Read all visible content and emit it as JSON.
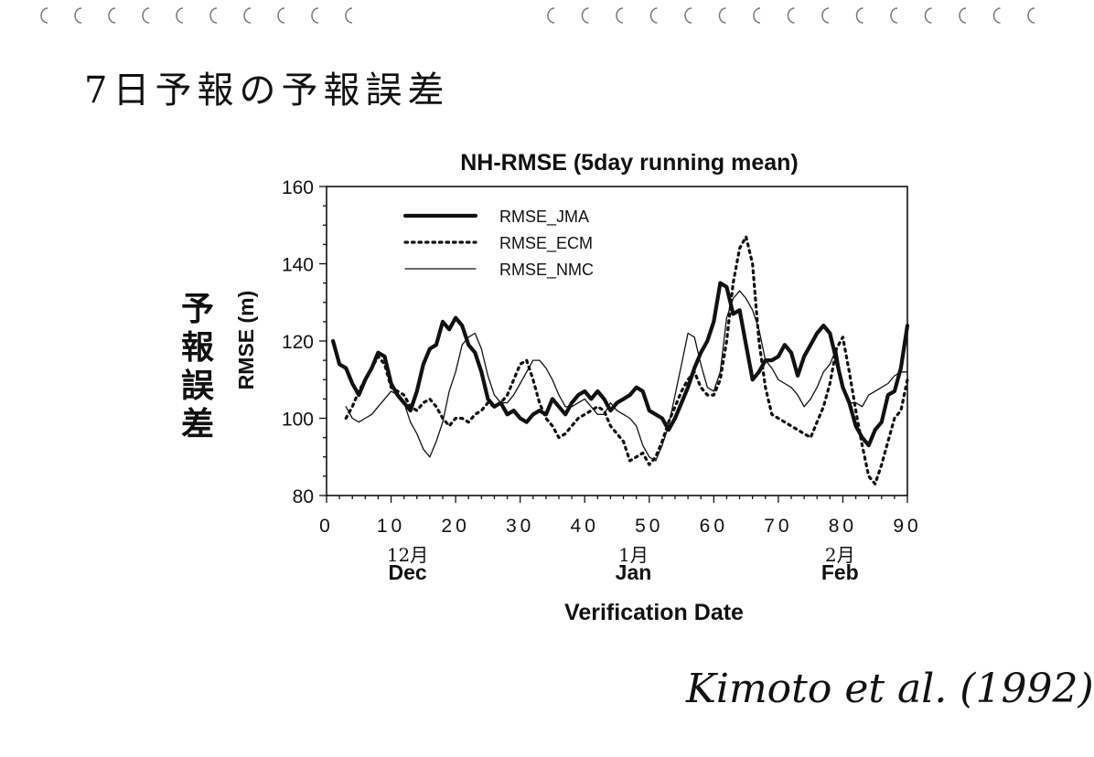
{
  "page": {
    "heading": "7日予報の予報誤差",
    "side_label": "予報誤差",
    "credit": "Kimoto et al. (1992)"
  },
  "chart_data": {
    "type": "line",
    "title": "NH-RMSE (5day running mean)",
    "xlabel": "Verification Date",
    "ylabel": "RMSE (m)",
    "xlim": [
      0,
      90
    ],
    "ylim": [
      80,
      160
    ],
    "xticks": [
      0,
      10,
      20,
      30,
      40,
      50,
      60,
      70,
      80,
      90
    ],
    "yticks": [
      80,
      100,
      120,
      140,
      160
    ],
    "grid": false,
    "legend_position": "top-left",
    "month_labels": [
      {
        "x": 10,
        "hand": "12月",
        "name": "Dec"
      },
      {
        "x": 45,
        "hand": "1月",
        "name": "Jan"
      },
      {
        "x": 77,
        "hand": "2月",
        "name": "Feb"
      }
    ],
    "series": [
      {
        "name": "RMSE_JMA",
        "style": "thick",
        "color": "#111111",
        "x": [
          1,
          2,
          3,
          4,
          5,
          6,
          7,
          8,
          9,
          10,
          11,
          12,
          13,
          14,
          15,
          16,
          17,
          18,
          19,
          20,
          21,
          22,
          23,
          24,
          25,
          26,
          27,
          28,
          29,
          30,
          31,
          32,
          33,
          34,
          35,
          36,
          37,
          38,
          39,
          40,
          41,
          42,
          43,
          44,
          45,
          46,
          47,
          48,
          49,
          50,
          51,
          52,
          53,
          54,
          55,
          56,
          57,
          58,
          59,
          60,
          61,
          62,
          63,
          64,
          65,
          66,
          67,
          68,
          69,
          70,
          71,
          72,
          73,
          74,
          75,
          76,
          77,
          78,
          79,
          80,
          81,
          82,
          83,
          84,
          85,
          86,
          87,
          88,
          89,
          90
        ],
        "values": [
          120,
          114,
          113,
          109,
          106,
          110,
          113,
          117,
          116,
          109,
          106,
          104,
          102,
          107,
          114,
          118,
          119,
          125,
          123,
          126,
          124,
          119,
          117,
          112,
          105,
          103,
          104,
          101,
          102,
          100,
          99,
          101,
          102,
          101,
          105,
          103,
          101,
          104,
          106,
          107,
          105,
          107,
          105,
          102,
          104,
          105,
          106,
          108,
          107,
          102,
          101,
          100,
          97,
          100,
          104,
          108,
          113,
          117,
          120,
          125,
          135,
          134,
          127,
          128,
          119,
          110,
          112,
          115,
          115,
          116,
          119,
          117,
          111,
          116,
          119,
          122,
          124,
          122,
          115,
          108,
          104,
          98,
          95,
          93,
          97,
          99,
          106,
          107,
          113,
          124
        ]
      },
      {
        "name": "RMSE_ECM",
        "style": "dotted",
        "color": "#111111",
        "x": [
          3,
          4,
          5,
          6,
          7,
          8,
          9,
          10,
          11,
          12,
          13,
          14,
          15,
          16,
          17,
          18,
          19,
          20,
          21,
          22,
          23,
          24,
          25,
          26,
          27,
          28,
          29,
          30,
          31,
          32,
          33,
          34,
          35,
          36,
          37,
          38,
          39,
          40,
          41,
          42,
          43,
          44,
          45,
          46,
          47,
          48,
          49,
          50,
          51,
          52,
          53,
          54,
          55,
          56,
          57,
          58,
          59,
          60,
          61,
          62,
          63,
          64,
          65,
          66,
          67,
          68,
          69,
          70,
          71,
          72,
          73,
          74,
          75,
          76,
          77,
          78,
          79,
          80,
          81,
          82,
          83,
          84,
          85,
          86,
          87,
          88,
          89,
          90
        ],
        "values": [
          100,
          103,
          107,
          110,
          113,
          116,
          114,
          108,
          107,
          106,
          103,
          102,
          104,
          105,
          103,
          100,
          98,
          100,
          100,
          99,
          101,
          102,
          104,
          103,
          104,
          106,
          110,
          114,
          115,
          110,
          104,
          100,
          98,
          95,
          96,
          98,
          100,
          101,
          102,
          103,
          102,
          98,
          96,
          94,
          89,
          90,
          91,
          88,
          90,
          94,
          99,
          103,
          107,
          110,
          112,
          108,
          106,
          106,
          110,
          120,
          135,
          144,
          147,
          140,
          120,
          108,
          101,
          100,
          99,
          98,
          97,
          96,
          95,
          99,
          103,
          109,
          118,
          121,
          112,
          102,
          93,
          85,
          83,
          88,
          94,
          100,
          102,
          110
        ]
      },
      {
        "name": "RMSE_NMC",
        "style": "thin",
        "color": "#111111",
        "x": [
          3,
          4,
          5,
          6,
          7,
          8,
          9,
          10,
          11,
          12,
          13,
          14,
          15,
          16,
          17,
          18,
          19,
          20,
          21,
          22,
          23,
          24,
          25,
          26,
          27,
          28,
          29,
          30,
          31,
          32,
          33,
          34,
          35,
          36,
          37,
          38,
          39,
          40,
          41,
          42,
          43,
          44,
          45,
          46,
          47,
          48,
          49,
          50,
          51,
          52,
          53,
          54,
          55,
          56,
          57,
          58,
          59,
          60,
          61,
          62,
          63,
          64,
          65,
          66,
          67,
          68,
          69,
          70,
          71,
          72,
          73,
          74,
          75,
          76,
          77,
          78,
          79,
          80,
          81,
          82,
          83,
          84,
          85,
          86,
          87,
          88,
          89,
          90
        ],
        "values": [
          103,
          100,
          99,
          100,
          101,
          103,
          105,
          107,
          106,
          104,
          99,
          96,
          92,
          90,
          94,
          99,
          107,
          112,
          119,
          121,
          122,
          118,
          111,
          106,
          104,
          104,
          106,
          109,
          112,
          115,
          115,
          113,
          110,
          106,
          103,
          103,
          104,
          105,
          103,
          101,
          101,
          104,
          102,
          101,
          100,
          98,
          93,
          90,
          89,
          93,
          98,
          106,
          114,
          122,
          121,
          114,
          108,
          107,
          112,
          126,
          131,
          133,
          131,
          128,
          123,
          115,
          113,
          110,
          109,
          108,
          106,
          103,
          105,
          108,
          112,
          114,
          118,
          108,
          104,
          104,
          103,
          106,
          107,
          108,
          109,
          111,
          112,
          112
        ]
      }
    ]
  }
}
